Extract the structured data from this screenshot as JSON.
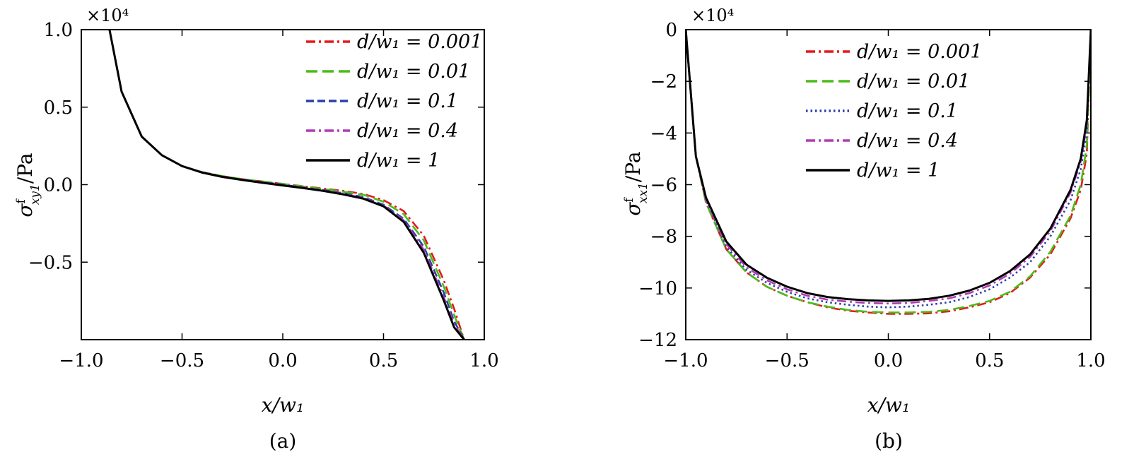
{
  "chart_data": [
    {
      "type": "line",
      "panel": "a",
      "caption": "(a)",
      "xlabel": "x/w₁",
      "ylabel": "σᶠxy1/Pa",
      "ylabel_base": "σ",
      "ylabel_sup": "f",
      "ylabel_sub": "xy1",
      "ylabel_unit": "/Pa",
      "multiplier": "×10⁴",
      "xlim": [
        -1.0,
        1.0
      ],
      "ylim": [
        -1.0,
        1.0
      ],
      "xticks": [
        "−1.0",
        "−0.5",
        "0.0",
        "0.5",
        "1.0"
      ],
      "xtick_values": [
        -1.0,
        -0.5,
        0.0,
        0.5,
        1.0
      ],
      "yticks": [
        "1.0",
        "0.5",
        "0.0",
        "−0.5"
      ],
      "ytick_values": [
        1.0,
        0.5,
        0.0,
        -0.5
      ],
      "legend_position": "top-right",
      "series": [
        {
          "name": "d/w₁ = 0.001",
          "color": "#e41a1c",
          "dash": "dashdot",
          "x": [
            -0.86,
            -0.8,
            -0.7,
            -0.6,
            -0.5,
            -0.4,
            -0.3,
            -0.2,
            -0.1,
            0.0,
            0.1,
            0.2,
            0.3,
            0.4,
            0.5,
            0.6,
            0.7,
            0.8,
            0.85,
            0.9
          ],
          "y": [
            1.0,
            0.6,
            0.31,
            0.19,
            0.12,
            0.08,
            0.055,
            0.035,
            0.02,
            0.005,
            -0.01,
            -0.025,
            -0.04,
            -0.06,
            -0.1,
            -0.17,
            -0.33,
            -0.62,
            -0.8,
            -1.0
          ]
        },
        {
          "name": "d/w₁ = 0.01",
          "color": "#4cbb17",
          "dash": "longdash",
          "x": [
            -0.86,
            -0.8,
            -0.7,
            -0.6,
            -0.5,
            -0.4,
            -0.3,
            -0.2,
            -0.1,
            0.0,
            0.1,
            0.2,
            0.3,
            0.4,
            0.5,
            0.6,
            0.7,
            0.8,
            0.85,
            0.9
          ],
          "y": [
            1.0,
            0.6,
            0.31,
            0.19,
            0.12,
            0.08,
            0.055,
            0.035,
            0.02,
            0.005,
            -0.012,
            -0.028,
            -0.045,
            -0.065,
            -0.11,
            -0.19,
            -0.36,
            -0.66,
            -0.84,
            -1.0
          ]
        },
        {
          "name": "d/w₁ = 0.1",
          "color": "#2b3fa8",
          "dash": "dash",
          "x": [
            -0.86,
            -0.8,
            -0.7,
            -0.6,
            -0.5,
            -0.4,
            -0.3,
            -0.2,
            -0.1,
            0.0,
            0.1,
            0.2,
            0.3,
            0.4,
            0.5,
            0.6,
            0.7,
            0.8,
            0.85,
            0.9
          ],
          "y": [
            1.0,
            0.6,
            0.31,
            0.19,
            0.12,
            0.08,
            0.052,
            0.032,
            0.016,
            0.0,
            -0.018,
            -0.035,
            -0.055,
            -0.08,
            -0.13,
            -0.22,
            -0.4,
            -0.7,
            -0.88,
            -1.0
          ]
        },
        {
          "name": "d/w₁ = 0.4",
          "color": "#b03cb5",
          "dash": "dashdot",
          "x": [
            -0.86,
            -0.8,
            -0.7,
            -0.6,
            -0.5,
            -0.4,
            -0.3,
            -0.2,
            -0.1,
            0.0,
            0.1,
            0.2,
            0.3,
            0.4,
            0.5,
            0.6,
            0.7,
            0.8,
            0.85,
            0.9
          ],
          "y": [
            1.0,
            0.6,
            0.31,
            0.19,
            0.12,
            0.078,
            0.05,
            0.03,
            0.013,
            -0.003,
            -0.02,
            -0.038,
            -0.06,
            -0.085,
            -0.135,
            -0.23,
            -0.42,
            -0.73,
            -0.9,
            -1.0
          ]
        },
        {
          "name": "d/w₁ = 1",
          "color": "#000000",
          "dash": "solid",
          "x": [
            -0.86,
            -0.8,
            -0.7,
            -0.6,
            -0.5,
            -0.4,
            -0.3,
            -0.2,
            -0.1,
            0.0,
            0.1,
            0.2,
            0.3,
            0.4,
            0.5,
            0.6,
            0.7,
            0.8,
            0.85,
            0.9
          ],
          "y": [
            1.0,
            0.6,
            0.31,
            0.19,
            0.12,
            0.078,
            0.05,
            0.03,
            0.012,
            -0.005,
            -0.022,
            -0.04,
            -0.063,
            -0.09,
            -0.14,
            -0.24,
            -0.44,
            -0.75,
            -0.92,
            -1.0
          ]
        }
      ]
    },
    {
      "type": "line",
      "panel": "b",
      "caption": "(b)",
      "xlabel": "x/w₁",
      "ylabel": "σᶠxx1/Pa",
      "ylabel_base": "σ",
      "ylabel_sup": "f",
      "ylabel_sub": "xx1",
      "ylabel_unit": "/Pa",
      "multiplier": "×10⁴",
      "xlim": [
        -1.0,
        1.0
      ],
      "ylim": [
        -12,
        0
      ],
      "xticks": [
        "−1.0",
        "−0.5",
        "0.0",
        "0.5",
        "1.0"
      ],
      "xtick_values": [
        -1.0,
        -0.5,
        0.0,
        0.5,
        1.0
      ],
      "yticks": [
        "0",
        "−2",
        "−4",
        "−6",
        "−8",
        "−10",
        "−12"
      ],
      "ytick_values": [
        0,
        -2,
        -4,
        -6,
        -8,
        -10,
        -12
      ],
      "legend_position": "top-center",
      "series": [
        {
          "name": "d/w₁ = 0.001",
          "color": "#e41a1c",
          "dash": "dashdot",
          "x": [
            -1.0,
            -0.95,
            -0.9,
            -0.8,
            -0.7,
            -0.6,
            -0.5,
            -0.4,
            -0.3,
            -0.2,
            -0.1,
            0.0,
            0.1,
            0.2,
            0.3,
            0.4,
            0.5,
            0.6,
            0.7,
            0.8,
            0.9,
            0.95,
            0.98,
            1.0
          ],
          "y": [
            0,
            -4.9,
            -6.7,
            -8.5,
            -9.4,
            -9.95,
            -10.3,
            -10.55,
            -10.75,
            -10.88,
            -10.95,
            -11.0,
            -11.0,
            -10.98,
            -10.9,
            -10.75,
            -10.55,
            -10.2,
            -9.6,
            -8.7,
            -7.3,
            -6.2,
            -4.8,
            0
          ]
        },
        {
          "name": "d/w₁ = 0.01",
          "color": "#4cbb17",
          "dash": "longdash",
          "x": [
            -1.0,
            -0.95,
            -0.9,
            -0.8,
            -0.7,
            -0.6,
            -0.5,
            -0.4,
            -0.3,
            -0.2,
            -0.1,
            0.0,
            0.1,
            0.2,
            0.3,
            0.4,
            0.5,
            0.6,
            0.7,
            0.8,
            0.9,
            0.95,
            0.98,
            1.0
          ],
          "y": [
            0,
            -4.9,
            -6.7,
            -8.5,
            -9.4,
            -9.95,
            -10.3,
            -10.55,
            -10.72,
            -10.85,
            -10.92,
            -10.95,
            -10.95,
            -10.92,
            -10.85,
            -10.7,
            -10.5,
            -10.15,
            -9.55,
            -8.6,
            -7.2,
            -6.0,
            -4.5,
            0
          ]
        },
        {
          "name": "d/w₁ = 0.1",
          "color": "#2b3fa8",
          "dash": "dot",
          "x": [
            -1.0,
            -0.95,
            -0.9,
            -0.8,
            -0.7,
            -0.6,
            -0.5,
            -0.4,
            -0.3,
            -0.2,
            -0.1,
            0.0,
            0.1,
            0.2,
            0.3,
            0.4,
            0.5,
            0.6,
            0.7,
            0.8,
            0.9,
            0.95,
            0.98,
            1.0
          ],
          "y": [
            0,
            -4.9,
            -6.6,
            -8.4,
            -9.3,
            -9.8,
            -10.15,
            -10.4,
            -10.55,
            -10.65,
            -10.72,
            -10.75,
            -10.72,
            -10.65,
            -10.55,
            -10.35,
            -10.05,
            -9.6,
            -9.0,
            -8.0,
            -6.6,
            -5.4,
            -4.0,
            0
          ]
        },
        {
          "name": "d/w₁ = 0.4",
          "color": "#b03cb5",
          "dash": "dashdot",
          "x": [
            -1.0,
            -0.95,
            -0.9,
            -0.8,
            -0.7,
            -0.6,
            -0.5,
            -0.4,
            -0.3,
            -0.2,
            -0.1,
            0.0,
            0.1,
            0.2,
            0.3,
            0.4,
            0.5,
            0.6,
            0.7,
            0.8,
            0.9,
            0.95,
            0.98,
            1.0
          ],
          "y": [
            0,
            -4.9,
            -6.6,
            -8.3,
            -9.2,
            -9.7,
            -10.05,
            -10.3,
            -10.45,
            -10.53,
            -10.58,
            -10.6,
            -10.58,
            -10.5,
            -10.4,
            -10.2,
            -9.9,
            -9.45,
            -8.8,
            -7.8,
            -6.3,
            -5.1,
            -3.7,
            0
          ]
        },
        {
          "name": "d/w₁ = 1",
          "color": "#000000",
          "dash": "solid",
          "x": [
            -1.0,
            -0.95,
            -0.9,
            -0.8,
            -0.7,
            -0.6,
            -0.5,
            -0.4,
            -0.3,
            -0.2,
            -0.1,
            0.0,
            0.1,
            0.2,
            0.3,
            0.4,
            0.5,
            0.6,
            0.7,
            0.8,
            0.9,
            0.95,
            0.98,
            1.0
          ],
          "y": [
            0,
            -4.9,
            -6.5,
            -8.2,
            -9.1,
            -9.6,
            -9.95,
            -10.2,
            -10.35,
            -10.43,
            -10.48,
            -10.5,
            -10.48,
            -10.42,
            -10.3,
            -10.1,
            -9.8,
            -9.35,
            -8.7,
            -7.7,
            -6.2,
            -5.0,
            -3.5,
            0
          ]
        }
      ]
    }
  ]
}
